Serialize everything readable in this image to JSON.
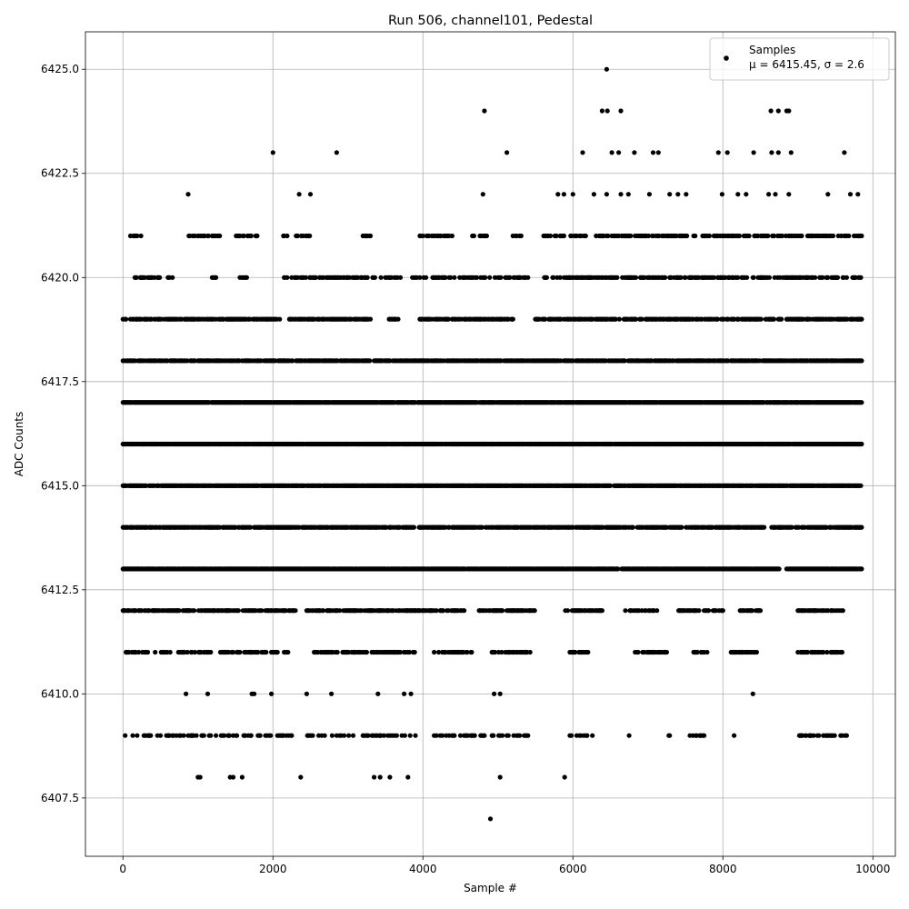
{
  "chart_data": {
    "type": "scatter",
    "title": "Run 506, channel101, Pedestal",
    "xlabel": "Sample #",
    "ylabel": "ADC Counts",
    "xlim": [
      -500,
      10300
    ],
    "ylim": [
      6406.1,
      6425.9
    ],
    "xticks": [
      0,
      2000,
      4000,
      6000,
      8000,
      10000
    ],
    "xtick_labels": [
      "0",
      "2000",
      "4000",
      "6000",
      "8000",
      "10000"
    ],
    "yticks": [
      6407.5,
      6410.0,
      6412.5,
      6415.0,
      6417.5,
      6420.0,
      6422.5,
      6425.0
    ],
    "ytick_labels": [
      "6407.5",
      "6410.0",
      "6412.5",
      "6415.0",
      "6417.5",
      "6420.0",
      "6422.5",
      "6425.0"
    ],
    "grid": true,
    "legend_position": "top-right",
    "marker_color": "#000000",
    "series": [
      {
        "name": "Samples",
        "stats_label": "μ = 6415.45, σ = 2.6",
        "mean": 6415.45,
        "sigma": 2.6,
        "points": [
          [
            4900,
            6407
          ],
          [
            1000,
            6408
          ],
          [
            1030,
            6408
          ],
          [
            1430,
            6408
          ],
          [
            1470,
            6408
          ],
          [
            1590,
            6408
          ],
          [
            2370,
            6408
          ],
          [
            3350,
            6408
          ],
          [
            3430,
            6408
          ],
          [
            3560,
            6408
          ],
          [
            3800,
            6408
          ],
          [
            5030,
            6408
          ],
          [
            5890,
            6408
          ],
          [
            840,
            6410
          ],
          [
            1130,
            6410
          ],
          [
            1720,
            6410
          ],
          [
            1750,
            6410
          ],
          [
            1980,
            6410
          ],
          [
            2450,
            6410
          ],
          [
            2780,
            6410
          ],
          [
            3400,
            6410
          ],
          [
            3750,
            6410
          ],
          [
            3840,
            6410
          ],
          [
            4950,
            6410
          ],
          [
            5030,
            6410
          ],
          [
            8400,
            6410
          ],
          [
            2000,
            6423
          ],
          [
            2850,
            6423
          ],
          [
            5120,
            6423
          ],
          [
            6130,
            6423
          ],
          [
            6520,
            6423
          ],
          [
            6610,
            6423
          ],
          [
            6820,
            6423
          ],
          [
            7070,
            6423
          ],
          [
            7140,
            6423
          ],
          [
            7940,
            6423
          ],
          [
            8060,
            6423
          ],
          [
            8410,
            6423
          ],
          [
            8650,
            6423
          ],
          [
            8740,
            6423
          ],
          [
            8910,
            6423
          ],
          [
            9620,
            6423
          ],
          [
            4820,
            6424
          ],
          [
            6390,
            6424
          ],
          [
            6460,
            6424
          ],
          [
            6640,
            6424
          ],
          [
            8640,
            6424
          ],
          [
            8740,
            6424
          ],
          [
            8850,
            6424
          ],
          [
            8880,
            6424
          ],
          [
            6450,
            6425
          ],
          [
            870,
            6422
          ],
          [
            2350,
            6422
          ],
          [
            2500,
            6422
          ],
          [
            4800,
            6422
          ],
          [
            5800,
            6422
          ],
          [
            5880,
            6422
          ],
          [
            6000,
            6422
          ],
          [
            6280,
            6422
          ],
          [
            6450,
            6422
          ],
          [
            6640,
            6422
          ],
          [
            6740,
            6422
          ],
          [
            7020,
            6422
          ],
          [
            7290,
            6422
          ],
          [
            7400,
            6422
          ],
          [
            7510,
            6422
          ],
          [
            7990,
            6422
          ],
          [
            8200,
            6422
          ],
          [
            8310,
            6422
          ],
          [
            8610,
            6422
          ],
          [
            8700,
            6422
          ],
          [
            8880,
            6422
          ],
          [
            9400,
            6422
          ],
          [
            9700,
            6422
          ],
          [
            9800,
            6422
          ]
        ],
        "bands": [
          {
            "y": 6409,
            "ranges": [
              [
                30,
                2250
              ],
              [
                2450,
                3900
              ],
              [
                4100,
                5400
              ],
              [
                5950,
                6300
              ],
              [
                6750,
                6780
              ],
              [
                7250,
                7300
              ],
              [
                7550,
                7750
              ],
              [
                8150,
                8180
              ],
              [
                9000,
                9650
              ]
            ],
            "density": 0.3
          },
          {
            "y": 6411,
            "ranges": [
              [
                0,
                2200
              ],
              [
                2550,
                3900
              ],
              [
                4150,
                4650
              ],
              [
                4900,
                5450
              ],
              [
                5950,
                6200
              ],
              [
                6800,
                7250
              ],
              [
                7600,
                7800
              ],
              [
                8100,
                8450
              ],
              [
                9000,
                9600
              ]
            ],
            "density": 0.45
          },
          {
            "y": 6412,
            "ranges": [
              [
                0,
                2300
              ],
              [
                2450,
                4550
              ],
              [
                4750,
                5500
              ],
              [
                5900,
                6400
              ],
              [
                6700,
                7150
              ],
              [
                7400,
                8000
              ],
              [
                8200,
                8500
              ],
              [
                9000,
                9600
              ]
            ],
            "density": 0.6
          },
          {
            "y": 6413,
            "ranges": [
              [
                0,
                6600
              ],
              [
                6650,
                8750
              ],
              [
                8850,
                9850
              ]
            ],
            "density": 0.95
          },
          {
            "y": 6414,
            "ranges": [
              [
                0,
                3900
              ],
              [
                3950,
                6800
              ],
              [
                6850,
                7450
              ],
              [
                7500,
                8550
              ],
              [
                8650,
                9850
              ]
            ],
            "density": 0.7
          },
          {
            "y": 6415,
            "ranges": [
              [
                0,
                6500
              ],
              [
                6550,
                9850
              ]
            ],
            "density": 0.9
          },
          {
            "y": 6416,
            "ranges": [
              [
                0,
                9850
              ]
            ],
            "density": 0.93
          },
          {
            "y": 6417,
            "ranges": [
              [
                0,
                9850
              ]
            ],
            "density": 0.95
          },
          {
            "y": 6418,
            "ranges": [
              [
                0,
                9850
              ]
            ],
            "density": 0.7
          },
          {
            "y": 6419,
            "ranges": [
              [
                0,
                2100
              ],
              [
                2200,
                3300
              ],
              [
                3550,
                3700
              ],
              [
                3950,
                5200
              ],
              [
                5500,
                9850
              ]
            ],
            "density": 0.6
          },
          {
            "y": 6420,
            "ranges": [
              [
                100,
                700
              ],
              [
                1150,
                1250
              ],
              [
                1550,
                1650
              ],
              [
                2150,
                3700
              ],
              [
                3850,
                5400
              ],
              [
                5600,
                9850
              ]
            ],
            "density": 0.45
          },
          {
            "y": 6421,
            "ranges": [
              [
                100,
                250
              ],
              [
                850,
                1300
              ],
              [
                1500,
                1800
              ],
              [
                2100,
                2500
              ],
              [
                3200,
                3300
              ],
              [
                3950,
                4400
              ],
              [
                4650,
                4850
              ],
              [
                5200,
                5350
              ],
              [
                5600,
                6200
              ],
              [
                6250,
                9850
              ]
            ],
            "density": 0.4
          }
        ]
      }
    ]
  }
}
